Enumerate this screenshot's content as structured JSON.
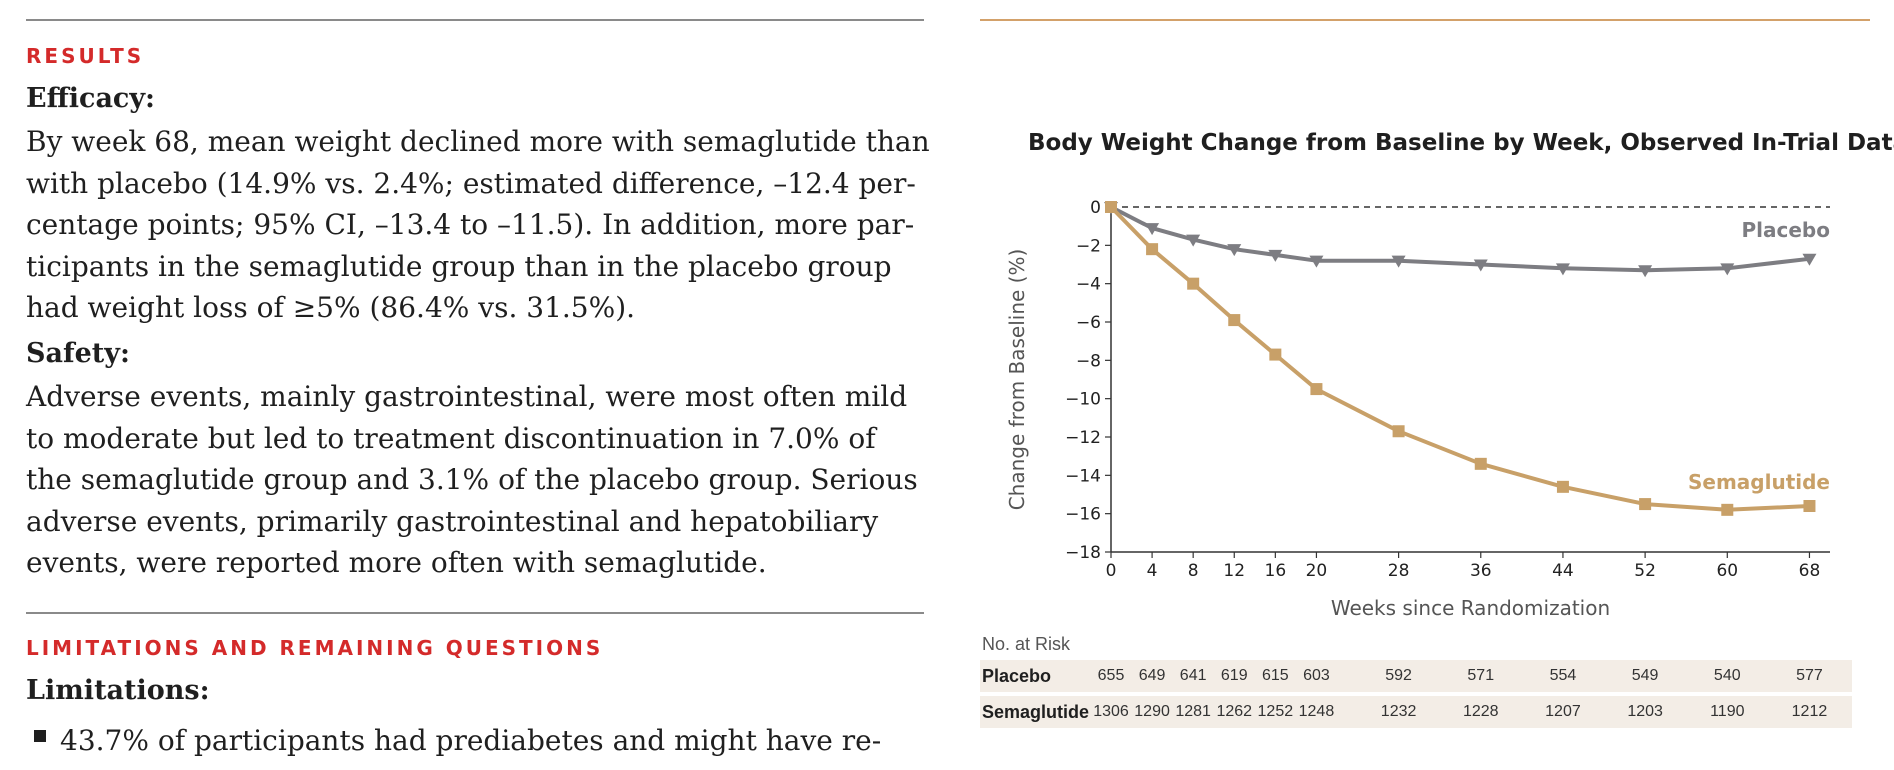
{
  "results_heading": "RESULTS",
  "efficacy": {
    "heading": "Efficacy:",
    "lines": [
      "By week 68, mean weight declined more with semaglutide than",
      "with placebo (14.9% vs. 2.4%; estimated difference, –12.4 per-",
      "centage points; 95% CI, –13.4 to –11.5). In addition, more par-",
      "ticipants in the semaglutide group than in the placebo group",
      "had weight loss of ≥5% (86.4% vs. 31.5%)."
    ]
  },
  "safety": {
    "heading": "Safety:",
    "lines": [
      "Adverse events, mainly gastrointestinal, were most often mild",
      "to moderate but led to treatment discontinuation in 7.0% of",
      "the semaglutide group and 3.1% of the placebo group. Serious",
      "adverse events, primarily gastrointestinal and hepatobiliary",
      "events, were reported more often with semaglutide."
    ]
  },
  "limitations_heading": "LIMITATIONS AND REMAINING QUESTIONS",
  "limitations": {
    "heading": "Limitations:",
    "bullets": [
      "43.7% of participants had prediabetes and might have re-"
    ]
  },
  "colors": {
    "accent_red": "#d42a2a",
    "rule_gold": "#d3a16a",
    "placebo": "#7d7d82",
    "semaglutide": "#c8a068",
    "risk_row_bg": "#f3ede6"
  },
  "chart_data": {
    "type": "line",
    "title": "Body Weight Change from Baseline by Week, Observed In-Trial Data",
    "xlabel": "Weeks since Randomization",
    "ylabel": "Change from Baseline (%)",
    "x": [
      0,
      4,
      8,
      12,
      16,
      20,
      28,
      36,
      44,
      52,
      60,
      68
    ],
    "xticks": [
      "0",
      "4",
      "8",
      "12",
      "16",
      "20",
      "28",
      "36",
      "44",
      "52",
      "60",
      "68"
    ],
    "yticks": [
      "0",
      "−2",
      "−4",
      "−6",
      "−8",
      "−10",
      "−12",
      "−14",
      "−16",
      "−18"
    ],
    "ylim": [
      -18,
      0
    ],
    "series": [
      {
        "name": "Placebo",
        "marker": "triangle-down",
        "values": [
          0,
          -1.1,
          -1.7,
          -2.2,
          -2.5,
          -2.8,
          -2.8,
          -3.0,
          -3.2,
          -3.3,
          -3.2,
          -2.7
        ]
      },
      {
        "name": "Semaglutide",
        "marker": "square",
        "values": [
          0,
          -2.2,
          -4.0,
          -5.9,
          -7.7,
          -9.5,
          -11.7,
          -13.4,
          -14.6,
          -15.5,
          -15.8,
          -15.6
        ]
      }
    ],
    "reference_line": {
      "y": 0,
      "style": "dashed"
    },
    "risk_table": {
      "label": "No. at Risk",
      "rows": [
        {
          "name": "Placebo",
          "values": [
            "655",
            "649",
            "641",
            "619",
            "615",
            "603",
            "592",
            "571",
            "554",
            "549",
            "540",
            "577"
          ]
        },
        {
          "name": "Semaglutide",
          "values": [
            "1306",
            "1290",
            "1281",
            "1262",
            "1252",
            "1248",
            "1232",
            "1228",
            "1207",
            "1203",
            "1190",
            "1212"
          ]
        }
      ]
    }
  }
}
